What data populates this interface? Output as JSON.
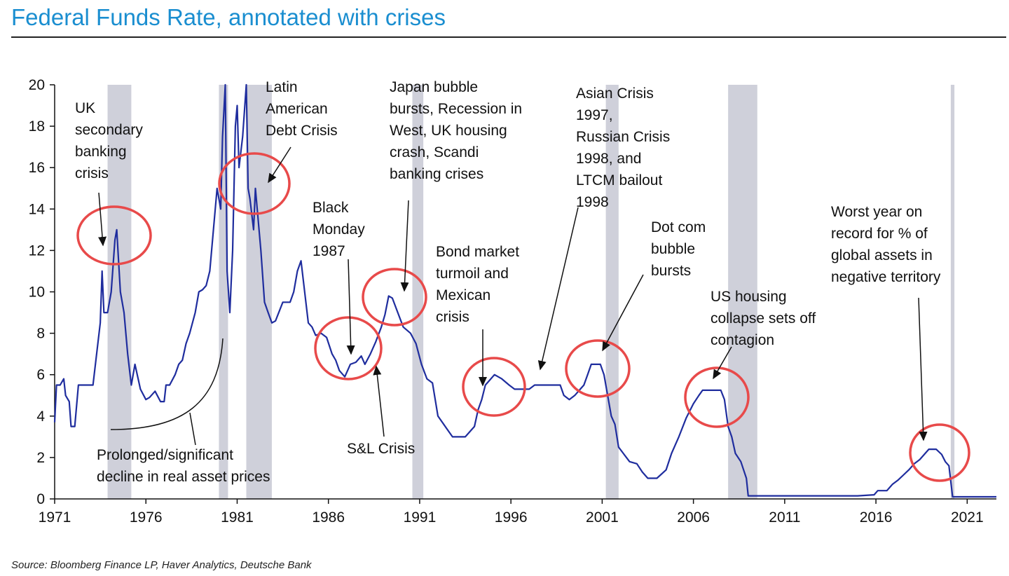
{
  "title": "Federal Funds Rate, annotated with crises",
  "source": "Source: Bloomberg Finance LP, Haver Analytics, Deutsche Bank",
  "colors": {
    "title": "#1a8ed0",
    "line": "#1f2d9e",
    "recession": "#cfd0da",
    "circle": "#e84a4a"
  },
  "chart_data": {
    "type": "line",
    "title": "Federal Funds Rate, annotated with crises",
    "xlabel": "",
    "ylabel": "",
    "xlim": [
      1971,
      2022.6
    ],
    "ylim": [
      0,
      20
    ],
    "x_ticks": [
      1971,
      1976,
      1981,
      1986,
      1991,
      1996,
      2001,
      2006,
      2011,
      2016,
      2021
    ],
    "y_ticks": [
      0,
      2,
      4,
      6,
      8,
      10,
      12,
      14,
      16,
      18,
      20
    ],
    "grid": false,
    "legend": "none",
    "recessions": [
      [
        1973.9,
        1975.2
      ],
      [
        1980.0,
        1980.5
      ],
      [
        1981.5,
        1982.9
      ],
      [
        1990.6,
        1991.2
      ],
      [
        2001.2,
        2001.9
      ],
      [
        2007.9,
        2009.5
      ],
      [
        2020.1,
        2020.3
      ]
    ],
    "series": [
      {
        "x": [
          1971.0,
          1971.1,
          1971.3,
          1971.5,
          1971.6,
          1971.8,
          1971.9,
          1972.1,
          1972.3,
          1972.6,
          1972.9,
          1973.1,
          1973.3,
          1973.5,
          1973.6,
          1973.7,
          1973.9,
          1974.1,
          1974.3,
          1974.4,
          1974.6,
          1974.8,
          1975.0,
          1975.2,
          1975.4,
          1975.7,
          1976.0,
          1976.2,
          1976.5,
          1976.8,
          1977.0,
          1977.1,
          1977.3,
          1977.6,
          1977.8,
          1978.0,
          1978.2,
          1978.4,
          1978.7,
          1978.9,
          1979.1,
          1979.3,
          1979.5,
          1979.7,
          1979.9,
          1980.1,
          1980.2,
          1980.35,
          1980.45,
          1980.6,
          1980.75,
          1980.9,
          1981.0,
          1981.1,
          1981.3,
          1981.5,
          1981.6,
          1981.7,
          1981.9,
          1982.0,
          1982.1,
          1982.3,
          1982.5,
          1982.7,
          1982.9,
          1983.1,
          1983.5,
          1983.9,
          1984.1,
          1984.3,
          1984.5,
          1984.7,
          1984.9,
          1985.1,
          1985.3,
          1985.6,
          1985.9,
          1986.2,
          1986.4,
          1986.6,
          1986.9,
          1987.2,
          1987.5,
          1987.8,
          1988.0,
          1988.3,
          1988.6,
          1988.9,
          1989.1,
          1989.3,
          1989.5,
          1989.8,
          1990.1,
          1990.5,
          1990.8,
          1991.1,
          1991.4,
          1991.7,
          1992.0,
          1992.4,
          1992.8,
          1993.5,
          1994.0,
          1994.2,
          1994.4,
          1994.6,
          1994.8,
          1995.1,
          1995.5,
          1995.9,
          1996.2,
          1997.0,
          1997.3,
          1998.0,
          1998.7,
          1998.9,
          1999.2,
          1999.5,
          1999.8,
          2000.0,
          2000.2,
          2000.4,
          2000.9,
          2001.1,
          2001.3,
          2001.5,
          2001.7,
          2001.9,
          2002.5,
          2002.9,
          2003.2,
          2003.5,
          2004.0,
          2004.5,
          2004.8,
          2005.2,
          2005.6,
          2006.0,
          2006.3,
          2006.5,
          2007.0,
          2007.5,
          2007.7,
          2007.9,
          2008.1,
          2008.3,
          2008.6,
          2008.9,
          2009.0,
          2009.5,
          2012.0,
          2015.0,
          2015.9,
          2016.1,
          2016.6,
          2016.9,
          2017.2,
          2017.5,
          2017.8,
          2018.1,
          2018.4,
          2018.7,
          2018.9,
          2019.3,
          2019.6,
          2019.8,
          2020.0,
          2020.2,
          2020.4,
          2021.0,
          2022.0,
          2022.6
        ],
        "y": [
          3.7,
          5.5,
          5.5,
          5.8,
          5.0,
          4.7,
          3.5,
          3.5,
          5.5,
          5.5,
          5.5,
          5.5,
          7.0,
          8.5,
          11.0,
          9.0,
          9.0,
          10.0,
          12.5,
          13.0,
          10.0,
          9.0,
          7.0,
          5.5,
          6.5,
          5.3,
          4.8,
          4.9,
          5.2,
          4.7,
          4.7,
          5.5,
          5.5,
          6.0,
          6.5,
          6.7,
          7.5,
          8.0,
          9.0,
          10.0,
          10.1,
          10.3,
          11.0,
          13.0,
          15.0,
          14.0,
          17.5,
          20.0,
          11.0,
          9.0,
          12.0,
          18.0,
          19.0,
          16.0,
          17.5,
          20.0,
          15.0,
          14.5,
          13.0,
          15.0,
          14.0,
          12.0,
          9.5,
          9.0,
          8.5,
          8.6,
          9.5,
          9.5,
          10.0,
          11.0,
          11.5,
          10.0,
          8.5,
          8.3,
          7.9,
          8.0,
          7.8,
          7.0,
          6.7,
          6.2,
          5.9,
          6.5,
          6.6,
          6.9,
          6.5,
          7.0,
          7.6,
          8.3,
          8.9,
          9.8,
          9.7,
          9.0,
          8.3,
          8.0,
          7.5,
          6.5,
          5.8,
          5.6,
          4.0,
          3.5,
          3.0,
          3.0,
          3.5,
          4.3,
          4.8,
          5.5,
          5.7,
          6.0,
          5.8,
          5.5,
          5.3,
          5.3,
          5.5,
          5.5,
          5.5,
          5.0,
          4.8,
          5.0,
          5.3,
          5.5,
          6.0,
          6.5,
          6.5,
          6.0,
          5.0,
          4.0,
          3.6,
          2.5,
          1.8,
          1.7,
          1.3,
          1.0,
          1.0,
          1.4,
          2.2,
          3.0,
          3.9,
          4.6,
          5.0,
          5.25,
          5.25,
          5.25,
          4.8,
          3.5,
          3.0,
          2.2,
          1.8,
          1.0,
          0.15,
          0.15,
          0.15,
          0.15,
          0.2,
          0.4,
          0.4,
          0.7,
          0.9,
          1.15,
          1.4,
          1.7,
          1.9,
          2.2,
          2.4,
          2.4,
          2.15,
          1.8,
          1.6,
          0.1,
          0.1,
          0.1,
          0.1,
          0.1
        ]
      }
    ],
    "annotations": [
      {
        "text": [
          "UK",
          "secondary",
          "banking",
          "crisis"
        ]
      },
      {
        "text": [
          "Latin",
          "American",
          "Debt Crisis"
        ]
      },
      {
        "text": [
          "Japan bubble",
          "bursts, Recession in",
          "West, UK housing",
          "crash, Scandi",
          "banking crises"
        ]
      },
      {
        "text": [
          "Asian Crisis",
          "1997,",
          "Russian Crisis",
          "1998, and",
          "LTCM bailout",
          "1998"
        ]
      },
      {
        "text": [
          "Black",
          "Monday",
          "1987"
        ]
      },
      {
        "text": [
          "Bond market",
          "turmoil and",
          "Mexican",
          "crisis"
        ]
      },
      {
        "text": [
          "Dot com",
          "bubble",
          "bursts"
        ]
      },
      {
        "text": [
          "Worst year on",
          "record for % of",
          "global assets in",
          "negative territory"
        ]
      },
      {
        "text": [
          "US housing",
          "collapse sets off",
          "contagion"
        ]
      },
      {
        "text": [
          "S&L Crisis"
        ]
      },
      {
        "text": [
          "Prolonged/significant",
          "decline in real asset prices"
        ]
      }
    ]
  }
}
